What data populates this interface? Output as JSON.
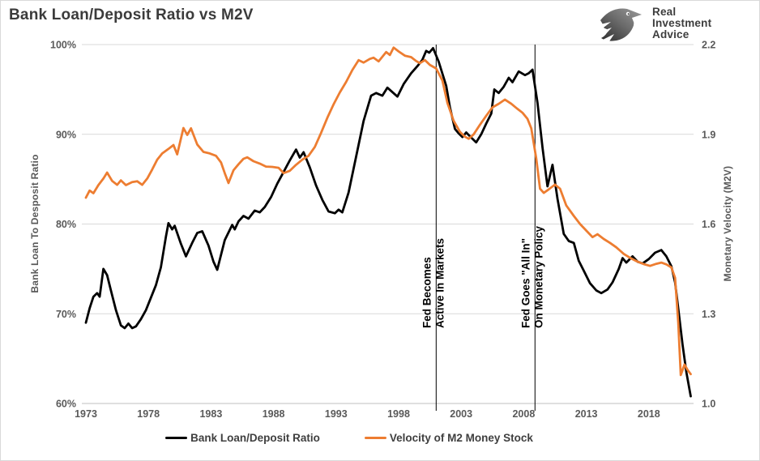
{
  "header": {
    "title": "Bank Loan/Deposit Ratio vs M2V",
    "logo": {
      "icon": "eagle-logo-icon",
      "line1": "Real",
      "line2": "Investment",
      "line3": "Advice"
    }
  },
  "colors": {
    "grid": "#d9d9d9",
    "axis_line": "#bfbfbf",
    "tick_text": "#595959",
    "title_text": "#3b3b3b",
    "annotation_line": "#000000",
    "series_black": "#000000",
    "series_orange": "#ED7D31"
  },
  "chart_data": {
    "type": "line",
    "title": "Bank Loan/Deposit Ratio vs M2V",
    "x_axis": {
      "ticks": [
        1973,
        1978,
        1983,
        1988,
        1993,
        1998,
        2003,
        2008,
        2013,
        2018
      ],
      "range": [
        1973,
        2021.5
      ],
      "grid": false
    },
    "left_axis": {
      "label": "Bank Loan To Desposit Ratio",
      "tick_labels": [
        "100%",
        "90%",
        "80%",
        "70%",
        "60%"
      ],
      "tick_values": [
        100,
        90,
        80,
        70,
        60
      ],
      "range": [
        60,
        100
      ],
      "grid": true
    },
    "right_axis": {
      "label": "Monetary Velocity (M2V)",
      "tick_labels": [
        "2.2",
        "1.9",
        "1.6",
        "1.3",
        "1.0"
      ],
      "tick_values": [
        2.2,
        1.9,
        1.6,
        1.3,
        1.0
      ],
      "range": [
        1.0,
        2.2
      ]
    },
    "legend_position": "bottom",
    "legend": [
      {
        "label": "Bank Loan/Deposit Ratio",
        "color": "#000000"
      },
      {
        "label": "Velocity of M2 Money Stock",
        "color": "#ED7D31"
      }
    ],
    "annotations": [
      {
        "year": 2001.0,
        "lines": [
          "Fed Becomes",
          "Active In Markets"
        ]
      },
      {
        "year": 2008.9,
        "lines": [
          "Fed Goes \"All In\"",
          "On Monetary Policy"
        ]
      }
    ],
    "series": [
      {
        "name": "Bank Loan/Deposit Ratio",
        "axis": "left",
        "color": "#000000",
        "points": [
          [
            1973.0,
            69.0
          ],
          [
            1973.3,
            70.6
          ],
          [
            1973.6,
            71.9
          ],
          [
            1973.9,
            72.3
          ],
          [
            1974.1,
            71.9
          ],
          [
            1974.4,
            75.0
          ],
          [
            1974.7,
            74.3
          ],
          [
            1975.0,
            72.6
          ],
          [
            1975.4,
            70.4
          ],
          [
            1975.8,
            68.7
          ],
          [
            1976.1,
            68.4
          ],
          [
            1976.4,
            68.9
          ],
          [
            1976.7,
            68.4
          ],
          [
            1977.0,
            68.6
          ],
          [
            1977.4,
            69.4
          ],
          [
            1977.8,
            70.4
          ],
          [
            1978.2,
            71.8
          ],
          [
            1978.6,
            73.2
          ],
          [
            1979.0,
            75.2
          ],
          [
            1979.4,
            78.6
          ],
          [
            1979.6,
            80.1
          ],
          [
            1979.9,
            79.4
          ],
          [
            1980.1,
            79.8
          ],
          [
            1980.6,
            77.8
          ],
          [
            1981.0,
            76.4
          ],
          [
            1981.5,
            77.9
          ],
          [
            1981.9,
            79.0
          ],
          [
            1982.3,
            79.2
          ],
          [
            1982.8,
            77.6
          ],
          [
            1983.2,
            75.8
          ],
          [
            1983.5,
            74.9
          ],
          [
            1984.1,
            78.2
          ],
          [
            1984.7,
            79.9
          ],
          [
            1984.9,
            79.4
          ],
          [
            1985.2,
            80.3
          ],
          [
            1985.6,
            80.9
          ],
          [
            1986.0,
            80.6
          ],
          [
            1986.5,
            81.5
          ],
          [
            1986.9,
            81.3
          ],
          [
            1987.3,
            81.9
          ],
          [
            1987.8,
            83.0
          ],
          [
            1988.3,
            84.5
          ],
          [
            1988.8,
            85.8
          ],
          [
            1989.3,
            87.1
          ],
          [
            1989.8,
            88.3
          ],
          [
            1990.1,
            87.4
          ],
          [
            1990.4,
            88.0
          ],
          [
            1990.9,
            86.3
          ],
          [
            1991.4,
            84.3
          ],
          [
            1991.9,
            82.7
          ],
          [
            1992.4,
            81.4
          ],
          [
            1992.9,
            81.2
          ],
          [
            1993.2,
            81.6
          ],
          [
            1993.5,
            81.3
          ],
          [
            1994.0,
            83.5
          ],
          [
            1994.6,
            87.5
          ],
          [
            1995.2,
            91.5
          ],
          [
            1995.8,
            94.3
          ],
          [
            1996.2,
            94.6
          ],
          [
            1996.7,
            94.3
          ],
          [
            1997.1,
            95.2
          ],
          [
            1997.5,
            94.7
          ],
          [
            1997.9,
            94.2
          ],
          [
            1998.4,
            95.6
          ],
          [
            1999.0,
            96.8
          ],
          [
            1999.5,
            97.6
          ],
          [
            1999.9,
            98.3
          ],
          [
            2000.2,
            99.3
          ],
          [
            2000.45,
            99.1
          ],
          [
            2000.75,
            99.6
          ],
          [
            2001.2,
            98.1
          ],
          [
            2001.8,
            95.4
          ],
          [
            2002.1,
            93.0
          ],
          [
            2002.5,
            90.6
          ],
          [
            2002.8,
            90.1
          ],
          [
            2003.1,
            89.7
          ],
          [
            2003.4,
            90.2
          ],
          [
            2003.9,
            89.5
          ],
          [
            2004.2,
            89.1
          ],
          [
            2004.6,
            90.0
          ],
          [
            2005.0,
            91.2
          ],
          [
            2005.4,
            92.3
          ],
          [
            2005.65,
            95.0
          ],
          [
            2006.0,
            94.6
          ],
          [
            2006.4,
            95.3
          ],
          [
            2006.8,
            96.3
          ],
          [
            2007.1,
            95.8
          ],
          [
            2007.6,
            97.0
          ],
          [
            2008.1,
            96.6
          ],
          [
            2008.4,
            96.8
          ],
          [
            2008.7,
            97.2
          ],
          [
            2009.1,
            93.5
          ],
          [
            2009.5,
            88.5
          ],
          [
            2009.9,
            84.2
          ],
          [
            2010.3,
            86.6
          ],
          [
            2010.7,
            82.8
          ],
          [
            2011.2,
            78.9
          ],
          [
            2011.6,
            78.1
          ],
          [
            2012.0,
            77.9
          ],
          [
            2012.4,
            75.9
          ],
          [
            2012.8,
            74.8
          ],
          [
            2013.3,
            73.4
          ],
          [
            2013.8,
            72.6
          ],
          [
            2014.2,
            72.3
          ],
          [
            2014.7,
            72.7
          ],
          [
            2015.1,
            73.5
          ],
          [
            2015.6,
            75.0
          ],
          [
            2015.9,
            76.2
          ],
          [
            2016.2,
            75.7
          ],
          [
            2016.7,
            76.4
          ],
          [
            2017.1,
            75.8
          ],
          [
            2017.5,
            75.6
          ],
          [
            2018.0,
            76.1
          ],
          [
            2018.5,
            76.8
          ],
          [
            2019.0,
            77.1
          ],
          [
            2019.4,
            76.4
          ],
          [
            2019.8,
            75.3
          ],
          [
            2020.1,
            73.5
          ],
          [
            2020.4,
            70.0
          ],
          [
            2020.7,
            66.5
          ],
          [
            2021.0,
            63.5
          ],
          [
            2021.35,
            60.8
          ]
        ]
      },
      {
        "name": "Velocity of M2 Money Stock",
        "axis": "right",
        "color": "#ED7D31",
        "points": [
          [
            1973.0,
            1.688
          ],
          [
            1973.3,
            1.712
          ],
          [
            1973.6,
            1.703
          ],
          [
            1974.0,
            1.73
          ],
          [
            1974.4,
            1.752
          ],
          [
            1974.7,
            1.772
          ],
          [
            1975.1,
            1.744
          ],
          [
            1975.5,
            1.731
          ],
          [
            1975.8,
            1.746
          ],
          [
            1976.2,
            1.73
          ],
          [
            1976.7,
            1.74
          ],
          [
            1977.1,
            1.743
          ],
          [
            1977.5,
            1.731
          ],
          [
            1977.9,
            1.752
          ],
          [
            1978.3,
            1.782
          ],
          [
            1978.7,
            1.815
          ],
          [
            1979.1,
            1.836
          ],
          [
            1979.6,
            1.851
          ],
          [
            1980.0,
            1.864
          ],
          [
            1980.3,
            1.833
          ],
          [
            1980.8,
            1.921
          ],
          [
            1981.1,
            1.898
          ],
          [
            1981.4,
            1.92
          ],
          [
            1981.9,
            1.866
          ],
          [
            1982.4,
            1.841
          ],
          [
            1982.9,
            1.836
          ],
          [
            1983.4,
            1.828
          ],
          [
            1983.8,
            1.806
          ],
          [
            1984.1,
            1.77
          ],
          [
            1984.4,
            1.737
          ],
          [
            1984.8,
            1.78
          ],
          [
            1985.2,
            1.8
          ],
          [
            1985.6,
            1.818
          ],
          [
            1985.9,
            1.823
          ],
          [
            1986.4,
            1.81
          ],
          [
            1986.9,
            1.802
          ],
          [
            1987.4,
            1.792
          ],
          [
            1987.9,
            1.791
          ],
          [
            1988.4,
            1.788
          ],
          [
            1988.8,
            1.77
          ],
          [
            1989.3,
            1.778
          ],
          [
            1989.8,
            1.798
          ],
          [
            1990.3,
            1.815
          ],
          [
            1990.8,
            1.828
          ],
          [
            1991.3,
            1.858
          ],
          [
            1991.8,
            1.905
          ],
          [
            1992.3,
            1.955
          ],
          [
            1992.8,
            2.0
          ],
          [
            1993.3,
            2.04
          ],
          [
            1993.8,
            2.075
          ],
          [
            1994.3,
            2.115
          ],
          [
            1994.8,
            2.148
          ],
          [
            1995.2,
            2.14
          ],
          [
            1995.7,
            2.152
          ],
          [
            1996.0,
            2.156
          ],
          [
            1996.4,
            2.144
          ],
          [
            1997.0,
            2.175
          ],
          [
            1997.3,
            2.165
          ],
          [
            1997.6,
            2.19
          ],
          [
            1998.0,
            2.177
          ],
          [
            1998.5,
            2.163
          ],
          [
            1999.0,
            2.158
          ],
          [
            1999.4,
            2.145
          ],
          [
            1999.7,
            2.138
          ],
          [
            2000.1,
            2.148
          ],
          [
            2000.5,
            2.132
          ],
          [
            2001.0,
            2.12
          ],
          [
            2001.5,
            2.08
          ],
          [
            2001.9,
            2.005
          ],
          [
            2002.4,
            1.945
          ],
          [
            2002.9,
            1.908
          ],
          [
            2003.3,
            1.892
          ],
          [
            2003.6,
            1.885
          ],
          [
            2004.0,
            1.9
          ],
          [
            2004.5,
            1.932
          ],
          [
            2005.0,
            1.962
          ],
          [
            2005.5,
            1.99
          ],
          [
            2006.0,
            2.002
          ],
          [
            2006.5,
            2.016
          ],
          [
            2007.0,
            2.002
          ],
          [
            2007.5,
            1.985
          ],
          [
            2007.9,
            1.972
          ],
          [
            2008.3,
            1.952
          ],
          [
            2008.6,
            1.92
          ],
          [
            2009.0,
            1.82
          ],
          [
            2009.3,
            1.718
          ],
          [
            2009.6,
            1.704
          ],
          [
            2010.0,
            1.716
          ],
          [
            2010.5,
            1.732
          ],
          [
            2010.9,
            1.718
          ],
          [
            2011.4,
            1.662
          ],
          [
            2012.0,
            1.627
          ],
          [
            2012.5,
            1.6
          ],
          [
            2013.0,
            1.578
          ],
          [
            2013.5,
            1.556
          ],
          [
            2013.9,
            1.566
          ],
          [
            2014.4,
            1.55
          ],
          [
            2014.9,
            1.537
          ],
          [
            2015.4,
            1.522
          ],
          [
            2016.0,
            1.5
          ],
          [
            2016.5,
            1.487
          ],
          [
            2017.0,
            1.476
          ],
          [
            2017.6,
            1.466
          ],
          [
            2018.1,
            1.46
          ],
          [
            2018.6,
            1.467
          ],
          [
            2019.0,
            1.471
          ],
          [
            2019.4,
            1.465
          ],
          [
            2019.8,
            1.455
          ],
          [
            2020.1,
            1.42
          ],
          [
            2020.35,
            1.27
          ],
          [
            2020.55,
            1.095
          ],
          [
            2020.85,
            1.13
          ],
          [
            2021.1,
            1.112
          ],
          [
            2021.35,
            1.098
          ]
        ]
      }
    ]
  }
}
